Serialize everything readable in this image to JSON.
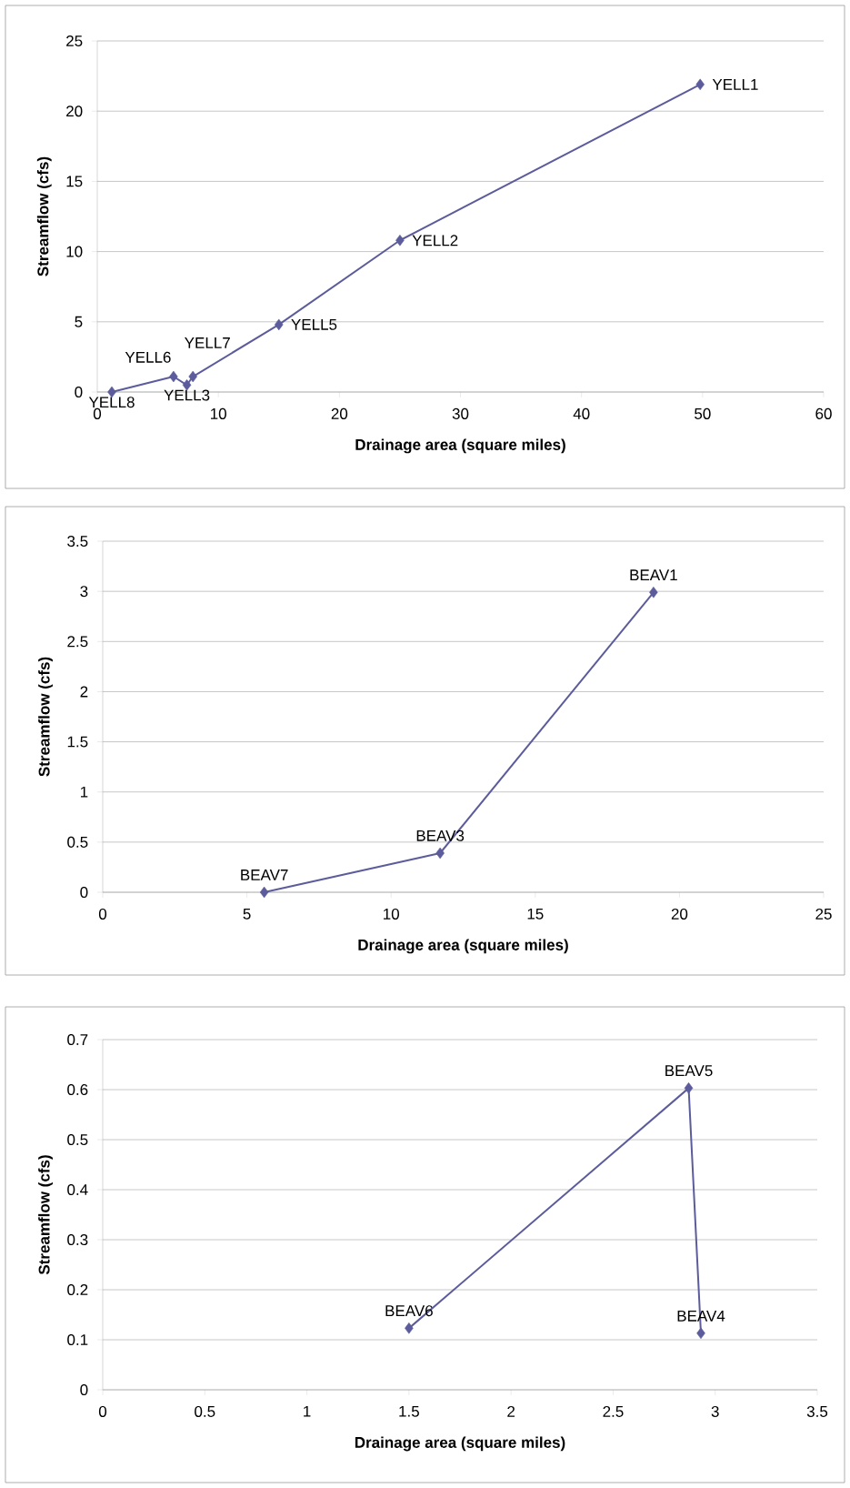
{
  "chart_data": [
    {
      "type": "line",
      "color": "#5c5c9c",
      "marker": "diamond",
      "line_style": "solid",
      "grid": "y",
      "x": [
        1.2,
        6.3,
        7.4,
        7.9,
        15,
        25,
        49.8
      ],
      "values": [
        0,
        1.1,
        0.5,
        1.1,
        4.8,
        10.8,
        21.9
      ],
      "xlabel": "Drainage area (square miles)",
      "ylabel": "Streamflow (cfs)",
      "xlim": [
        0,
        60
      ],
      "ylim": [
        0,
        25
      ],
      "xticks": [
        0,
        10,
        20,
        30,
        40,
        50,
        60
      ],
      "yticks": [
        0,
        5,
        10,
        15,
        20,
        25
      ],
      "annotations": [
        {
          "text": "YELL8",
          "x": 1.2,
          "y": 0
        },
        {
          "text": "YELL6",
          "x": 6.3,
          "y": 1.1
        },
        {
          "text": "YELL3",
          "x": 7.4,
          "y": 0.5
        },
        {
          "text": "YELL7",
          "x": 7.9,
          "y": 1.1
        },
        {
          "text": "YELL5",
          "x": 15,
          "y": 4.8
        },
        {
          "text": "YELL2",
          "x": 25,
          "y": 10.8
        },
        {
          "text": "YELL1",
          "x": 49.8,
          "y": 21.9
        }
      ]
    },
    {
      "type": "line",
      "color": "#5c5c9c",
      "marker": "diamond",
      "line_style": "solid",
      "grid": "y",
      "x": [
        5.6,
        11.7,
        19.1
      ],
      "values": [
        0,
        0.39,
        2.99
      ],
      "xlabel": "Drainage area (square miles)",
      "ylabel": "Streamflow (cfs)",
      "xlim": [
        0,
        25
      ],
      "ylim": [
        0,
        3.5
      ],
      "xticks": [
        0,
        5,
        10,
        15,
        20,
        25
      ],
      "yticks": [
        0,
        0.5,
        1,
        1.5,
        2,
        2.5,
        3,
        3.5
      ],
      "annotations": [
        {
          "text": "BEAV7",
          "x": 5.6,
          "y": 0
        },
        {
          "text": "BEAV3",
          "x": 11.7,
          "y": 0.39
        },
        {
          "text": "BEAV1",
          "x": 19.1,
          "y": 2.99
        }
      ]
    },
    {
      "type": "line",
      "color": "#5c5c9c",
      "marker": "diamond",
      "line_style": "solid",
      "grid": "y",
      "x": [
        1.5,
        2.87,
        2.93
      ],
      "values": [
        0.123,
        0.603,
        0.113
      ],
      "xlabel": "Drainage area (square miles)",
      "ylabel": "Streamflow (cfs)",
      "xlim": [
        0,
        3.5
      ],
      "ylim": [
        0,
        0.7
      ],
      "xticks": [
        0,
        0.5,
        1,
        1.5,
        2,
        2.5,
        3,
        3.5
      ],
      "yticks": [
        0,
        0.1,
        0.2,
        0.3,
        0.4,
        0.5,
        0.6,
        0.7
      ],
      "annotations": [
        {
          "text": "BEAV6",
          "x": 1.5,
          "y": 0.123
        },
        {
          "text": "BEAV5",
          "x": 2.87,
          "y": 0.603
        },
        {
          "text": "BEAV4",
          "x": 2.93,
          "y": 0.113
        }
      ]
    }
  ]
}
